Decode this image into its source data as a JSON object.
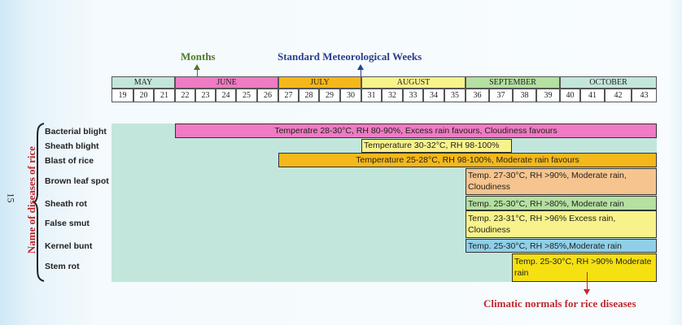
{
  "header": {
    "months_label": "Months",
    "smw_label": "Standard Meteorological Weeks",
    "colors": {
      "months_arrow": "#4a7a2a",
      "smw_arrow": "#2b3f8c"
    }
  },
  "months": [
    {
      "name": "MAY",
      "color": "#c3e6dc"
    },
    {
      "name": "JUNE",
      "color": "#ee7bc3"
    },
    {
      "name": "JULY",
      "color": "#f4b81a"
    },
    {
      "name": "AUGUST",
      "color": "#f8f28a"
    },
    {
      "name": "SEPTEMBER",
      "color": "#b4e0a0"
    },
    {
      "name": "OCTOBER",
      "color": "#c3e6dc"
    }
  ],
  "weeks": [
    "19",
    "20",
    "21",
    "22",
    "23",
    "24",
    "25",
    "26",
    "27",
    "28",
    "29",
    "30",
    "31",
    "32",
    "33",
    "34",
    "35",
    "36",
    "37",
    "38",
    "39",
    "40",
    "41",
    "42",
    "43"
  ],
  "y_axis_title": "Name of diseases of rice",
  "page_number": "15",
  "diseases": [
    {
      "name": "Bacterial blight",
      "conditions": "Temperatre 28-30°C,  RH 80-90%,  Excess rain favours,  Cloudiness favours",
      "color": "#ee7bc3"
    },
    {
      "name": "Sheath blight",
      "conditions": "Temperature 30-32°C, RH 98-100%",
      "color": "#f8f28a"
    },
    {
      "name": "Blast of rice",
      "conditions": "Temperature 25-28°C,  RH 98-100%,  Moderate rain favours",
      "color": "#f4b81a"
    },
    {
      "name": "Brown leaf spot",
      "conditions": "Temp. 27-30°C, RH >90%, Moderate rain, Cloudiness",
      "color": "#f6c48e"
    },
    {
      "name": "Sheath rot",
      "conditions": "Temp. 25-30°C, RH >80%,  Moderate rain",
      "color": "#b4e0a0"
    },
    {
      "name": "False smut",
      "conditions": "Temp. 23-31°C, RH >96%   Excess rain, Cloudiness",
      "color": "#f8f28a"
    },
    {
      "name": "Kernel bunt",
      "conditions": "Temp. 25-30°C, RH >85%,Moderate rain",
      "color": "#90cfe8"
    },
    {
      "name": "Stem rot",
      "conditions": "Temp. 25-30°C, RH >90% Moderate rain",
      "color": "#f5e012"
    }
  ],
  "caption": "Climatic normals for rice diseases",
  "caption_color": "#c0282e",
  "chart_bg_color": "#c3e6dc"
}
